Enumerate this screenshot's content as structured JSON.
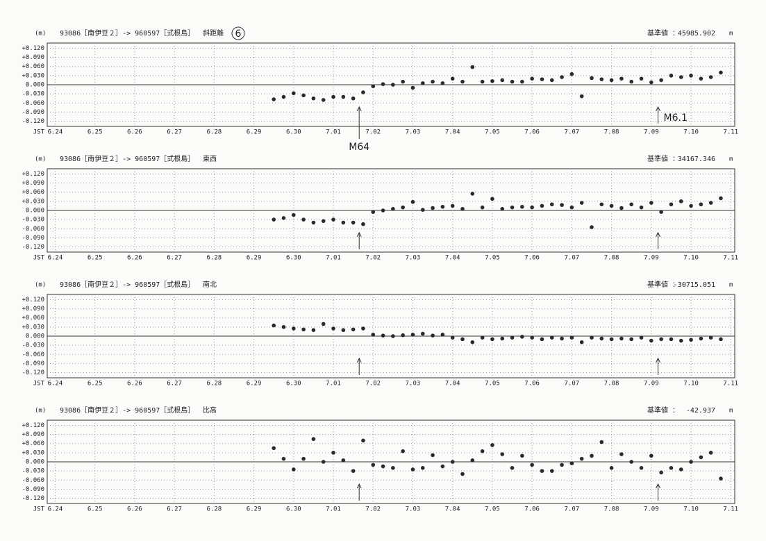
{
  "chart_data": [
    {
      "type": "scatter",
      "unit": "(m)",
      "title": "93086［南伊豆２］-> 960597［式根島］",
      "component": "斜距離",
      "page_mark": "6",
      "reference_label": "基準値 ：",
      "reference_value": 45985.902,
      "reference_unit": "m",
      "x_label": "JST",
      "color": "#2a2a2a",
      "grid": true,
      "zero_line": true,
      "xlim": [
        -0.2,
        17.1
      ],
      "ylim": [
        -0.137,
        0.137
      ],
      "xticks": [
        {
          "value": 0,
          "label": "6.24"
        },
        {
          "value": 1,
          "label": "6.25"
        },
        {
          "value": 2,
          "label": "6.26"
        },
        {
          "value": 3,
          "label": "6.27"
        },
        {
          "value": 4,
          "label": "6.28"
        },
        {
          "value": 5,
          "label": "6.29"
        },
        {
          "value": 6,
          "label": "6.30"
        },
        {
          "value": 7,
          "label": "7.01"
        },
        {
          "value": 8,
          "label": "7.02"
        },
        {
          "value": 9,
          "label": "7.03"
        },
        {
          "value": 10,
          "label": "7.04"
        },
        {
          "value": 11,
          "label": "7.05"
        },
        {
          "value": 12,
          "label": "7.06"
        },
        {
          "value": 13,
          "label": "7.07"
        },
        {
          "value": 14,
          "label": "7.08"
        },
        {
          "value": 15,
          "label": "7.09"
        },
        {
          "value": 16,
          "label": "7.10"
        },
        {
          "value": 17,
          "label": "7.11"
        }
      ],
      "yticks": [
        {
          "value": 0.12,
          "label": "+0.120"
        },
        {
          "value": 0.09,
          "label": "+0.090"
        },
        {
          "value": 0.06,
          "label": "+0.060"
        },
        {
          "value": 0.03,
          "label": "+0.030"
        },
        {
          "value": 0,
          "label": "0.000"
        },
        {
          "value": -0.03,
          "label": "-0.030"
        },
        {
          "value": -0.06,
          "label": "-0.060"
        },
        {
          "value": -0.09,
          "label": "-0.090"
        },
        {
          "value": -0.12,
          "label": "-0.120"
        }
      ],
      "arrows": [
        {
          "x": 7.65,
          "text": "M64"
        },
        {
          "x": 15.17,
          "text": "M6.1"
        }
      ],
      "x": [
        5.5,
        5.75,
        6,
        6.25,
        6.5,
        6.75,
        7,
        7.25,
        7.5,
        7.75,
        8,
        8.25,
        8.5,
        8.75,
        9,
        9.25,
        9.5,
        9.75,
        10,
        10.25,
        10.5,
        10.75,
        11,
        11.25,
        11.5,
        11.75,
        12,
        12.25,
        12.5,
        12.75,
        13,
        13.25,
        13.5,
        13.75,
        14,
        14.25,
        14.5,
        14.75,
        15,
        15.25,
        15.5,
        15.75,
        16,
        16.25,
        16.5,
        16.75
      ],
      "values": [
        -0.048,
        -0.04,
        -0.028,
        -0.035,
        -0.045,
        -0.05,
        -0.04,
        -0.04,
        -0.045,
        -0.025,
        -0.005,
        0.002,
        0.0,
        0.01,
        -0.01,
        0.005,
        0.01,
        0.005,
        0.02,
        0.01,
        0.058,
        0.01,
        0.012,
        0.015,
        0.01,
        0.01,
        0.02,
        0.018,
        0.015,
        0.025,
        0.035,
        -0.038,
        0.022,
        0.018,
        0.015,
        0.02,
        0.01,
        0.02,
        0.008,
        0.015,
        0.03,
        0.025,
        0.03,
        0.02,
        0.025,
        0.04
      ]
    },
    {
      "type": "scatter",
      "unit": "(m)",
      "title": "93086［南伊豆２］-> 960597［式根島］",
      "component": "東西",
      "reference_label": "基準値 ：",
      "reference_value": 34167.346,
      "reference_unit": "m",
      "x_label": "JST",
      "color": "#2a2a2a",
      "grid": true,
      "zero_line": true,
      "xlim": [
        -0.2,
        17.1
      ],
      "ylim": [
        -0.137,
        0.137
      ],
      "xticks": [
        {
          "value": 0,
          "label": "6.24"
        },
        {
          "value": 1,
          "label": "6.25"
        },
        {
          "value": 2,
          "label": "6.26"
        },
        {
          "value": 3,
          "label": "6.27"
        },
        {
          "value": 4,
          "label": "6.28"
        },
        {
          "value": 5,
          "label": "6.29"
        },
        {
          "value": 6,
          "label": "6.30"
        },
        {
          "value": 7,
          "label": "7.01"
        },
        {
          "value": 8,
          "label": "7.02"
        },
        {
          "value": 9,
          "label": "7.03"
        },
        {
          "value": 10,
          "label": "7.04"
        },
        {
          "value": 11,
          "label": "7.05"
        },
        {
          "value": 12,
          "label": "7.06"
        },
        {
          "value": 13,
          "label": "7.07"
        },
        {
          "value": 14,
          "label": "7.08"
        },
        {
          "value": 15,
          "label": "7.09"
        },
        {
          "value": 16,
          "label": "7.10"
        },
        {
          "value": 17,
          "label": "7.11"
        }
      ],
      "yticks": [
        {
          "value": 0.12,
          "label": "+0.120"
        },
        {
          "value": 0.09,
          "label": "+0.090"
        },
        {
          "value": 0.06,
          "label": "+0.060"
        },
        {
          "value": 0.03,
          "label": "+0.030"
        },
        {
          "value": 0,
          "label": "0.000"
        },
        {
          "value": -0.03,
          "label": "-0.030"
        },
        {
          "value": -0.06,
          "label": "-0.060"
        },
        {
          "value": -0.09,
          "label": "-0.090"
        },
        {
          "value": -0.12,
          "label": "-0.120"
        }
      ],
      "arrows": [
        {
          "x": 7.65
        },
        {
          "x": 15.17
        }
      ],
      "x": [
        5.5,
        5.75,
        6,
        6.25,
        6.5,
        6.75,
        7,
        7.25,
        7.5,
        7.75,
        8,
        8.25,
        8.5,
        8.75,
        9,
        9.25,
        9.5,
        9.75,
        10,
        10.25,
        10.5,
        10.75,
        11,
        11.25,
        11.5,
        11.75,
        12,
        12.25,
        12.5,
        12.75,
        13,
        13.25,
        13.5,
        13.75,
        14,
        14.25,
        14.5,
        14.75,
        15,
        15.25,
        15.5,
        15.75,
        16,
        16.25,
        16.5,
        16.75
      ],
      "values": [
        -0.03,
        -0.025,
        -0.015,
        -0.03,
        -0.04,
        -0.035,
        -0.03,
        -0.04,
        -0.04,
        -0.045,
        -0.005,
        0.0,
        0.005,
        0.01,
        0.028,
        0.002,
        0.008,
        0.012,
        0.015,
        0.005,
        0.055,
        0.01,
        0.038,
        0.005,
        0.01,
        0.012,
        0.01,
        0.015,
        0.02,
        0.018,
        0.01,
        0.025,
        -0.055,
        0.02,
        0.015,
        0.008,
        0.02,
        0.01,
        0.025,
        -0.005,
        0.02,
        0.03,
        0.015,
        0.02,
        0.025,
        0.04
      ]
    },
    {
      "type": "scatter",
      "unit": "(m)",
      "title": "93086［南伊豆２］-> 960597［式根島］",
      "component": "南北",
      "reference_label": "基準値 ：",
      "reference_value": -30715.051,
      "reference_unit": "m",
      "x_label": "JST",
      "color": "#2a2a2a",
      "grid": true,
      "zero_line": true,
      "xlim": [
        -0.2,
        17.1
      ],
      "ylim": [
        -0.137,
        0.137
      ],
      "xticks": [
        {
          "value": 0,
          "label": "6.24"
        },
        {
          "value": 1,
          "label": "6.25"
        },
        {
          "value": 2,
          "label": "6.26"
        },
        {
          "value": 3,
          "label": "6.27"
        },
        {
          "value": 4,
          "label": "6.28"
        },
        {
          "value": 5,
          "label": "6.29"
        },
        {
          "value": 6,
          "label": "6.30"
        },
        {
          "value": 7,
          "label": "7.01"
        },
        {
          "value": 8,
          "label": "7.02"
        },
        {
          "value": 9,
          "label": "7.03"
        },
        {
          "value": 10,
          "label": "7.04"
        },
        {
          "value": 11,
          "label": "7.05"
        },
        {
          "value": 12,
          "label": "7.06"
        },
        {
          "value": 13,
          "label": "7.07"
        },
        {
          "value": 14,
          "label": "7.08"
        },
        {
          "value": 15,
          "label": "7.09"
        },
        {
          "value": 16,
          "label": "7.10"
        },
        {
          "value": 17,
          "label": "7.11"
        }
      ],
      "yticks": [
        {
          "value": 0.12,
          "label": "+0.120"
        },
        {
          "value": 0.09,
          "label": "+0.090"
        },
        {
          "value": 0.06,
          "label": "+0.060"
        },
        {
          "value": 0.03,
          "label": "+0.030"
        },
        {
          "value": 0,
          "label": "0.000"
        },
        {
          "value": -0.03,
          "label": "-0.030"
        },
        {
          "value": -0.06,
          "label": "-0.060"
        },
        {
          "value": -0.09,
          "label": "-0.090"
        },
        {
          "value": -0.12,
          "label": "-0.120"
        }
      ],
      "arrows": [
        {
          "x": 7.65
        },
        {
          "x": 15.17
        }
      ],
      "x": [
        5.5,
        5.75,
        6,
        6.25,
        6.5,
        6.75,
        7,
        7.25,
        7.5,
        7.75,
        8,
        8.25,
        8.5,
        8.75,
        9,
        9.25,
        9.5,
        9.75,
        10,
        10.25,
        10.5,
        10.75,
        11,
        11.25,
        11.5,
        11.75,
        12,
        12.25,
        12.5,
        12.75,
        13,
        13.25,
        13.5,
        13.75,
        14,
        14.25,
        14.5,
        14.75,
        15,
        15.25,
        15.5,
        15.75,
        16,
        16.25,
        16.5,
        16.75
      ],
      "values": [
        0.035,
        0.03,
        0.025,
        0.022,
        0.02,
        0.04,
        0.025,
        0.02,
        0.022,
        0.025,
        0.005,
        0.002,
        0.0,
        0.003,
        0.005,
        0.008,
        0.002,
        0.005,
        -0.005,
        -0.01,
        -0.02,
        -0.005,
        -0.01,
        -0.008,
        -0.005,
        -0.002,
        -0.005,
        -0.01,
        -0.005,
        -0.008,
        -0.005,
        -0.02,
        -0.005,
        -0.008,
        -0.01,
        -0.008,
        -0.01,
        -0.005,
        -0.015,
        -0.01,
        -0.01,
        -0.015,
        -0.012,
        -0.008,
        -0.005,
        -0.01
      ]
    },
    {
      "type": "scatter",
      "unit": "(m)",
      "title": "93086［南伊豆２］-> 960597［式根島］",
      "component": "比高",
      "reference_label": "基準値 ：",
      "reference_value": -42.937,
      "reference_unit": "m",
      "x_label": "JST",
      "color": "#2a2a2a",
      "grid": true,
      "zero_line": true,
      "xlim": [
        -0.2,
        17.1
      ],
      "ylim": [
        -0.137,
        0.137
      ],
      "xticks": [
        {
          "value": 0,
          "label": "6.24"
        },
        {
          "value": 1,
          "label": "6.25"
        },
        {
          "value": 2,
          "label": "6.26"
        },
        {
          "value": 3,
          "label": "6.27"
        },
        {
          "value": 4,
          "label": "6.28"
        },
        {
          "value": 5,
          "label": "6.29"
        },
        {
          "value": 6,
          "label": "6.30"
        },
        {
          "value": 7,
          "label": "7.01"
        },
        {
          "value": 8,
          "label": "7.02"
        },
        {
          "value": 9,
          "label": "7.03"
        },
        {
          "value": 10,
          "label": "7.04"
        },
        {
          "value": 11,
          "label": "7.05"
        },
        {
          "value": 12,
          "label": "7.06"
        },
        {
          "value": 13,
          "label": "7.07"
        },
        {
          "value": 14,
          "label": "7.08"
        },
        {
          "value": 15,
          "label": "7.09"
        },
        {
          "value": 16,
          "label": "7.10"
        },
        {
          "value": 17,
          "label": "7.11"
        }
      ],
      "yticks": [
        {
          "value": 0.12,
          "label": "+0.120"
        },
        {
          "value": 0.09,
          "label": "+0.090"
        },
        {
          "value": 0.06,
          "label": "+0.060"
        },
        {
          "value": 0.03,
          "label": "+0.030"
        },
        {
          "value": 0,
          "label": "0.000"
        },
        {
          "value": -0.03,
          "label": "-0.030"
        },
        {
          "value": -0.06,
          "label": "-0.060"
        },
        {
          "value": -0.09,
          "label": "-0.090"
        },
        {
          "value": -0.12,
          "label": "-0.120"
        }
      ],
      "arrows": [
        {
          "x": 7.65
        },
        {
          "x": 15.17
        }
      ],
      "x": [
        5.5,
        5.75,
        6,
        6.25,
        6.5,
        6.75,
        7,
        7.25,
        7.5,
        7.75,
        8,
        8.25,
        8.5,
        8.75,
        9,
        9.25,
        9.5,
        9.75,
        10,
        10.25,
        10.5,
        10.75,
        11,
        11.25,
        11.5,
        11.75,
        12,
        12.25,
        12.5,
        12.75,
        13,
        13.25,
        13.5,
        13.75,
        14,
        14.25,
        14.5,
        14.75,
        15,
        15.25,
        15.5,
        15.75,
        16,
        16.25,
        16.5,
        16.75
      ],
      "values": [
        0.045,
        0.01,
        -0.025,
        0.01,
        0.075,
        0.0,
        0.03,
        0.005,
        -0.03,
        0.07,
        -0.01,
        -0.015,
        -0.02,
        0.035,
        -0.025,
        -0.02,
        0.022,
        -0.015,
        0.0,
        -0.04,
        0.005,
        0.035,
        0.055,
        0.025,
        -0.02,
        0.02,
        -0.01,
        -0.03,
        -0.03,
        -0.01,
        -0.005,
        0.01,
        0.02,
        0.065,
        -0.02,
        0.025,
        0.0,
        -0.02,
        0.02,
        -0.035,
        -0.02,
        -0.025,
        0.0,
        0.015,
        0.03,
        -0.055
      ]
    }
  ]
}
